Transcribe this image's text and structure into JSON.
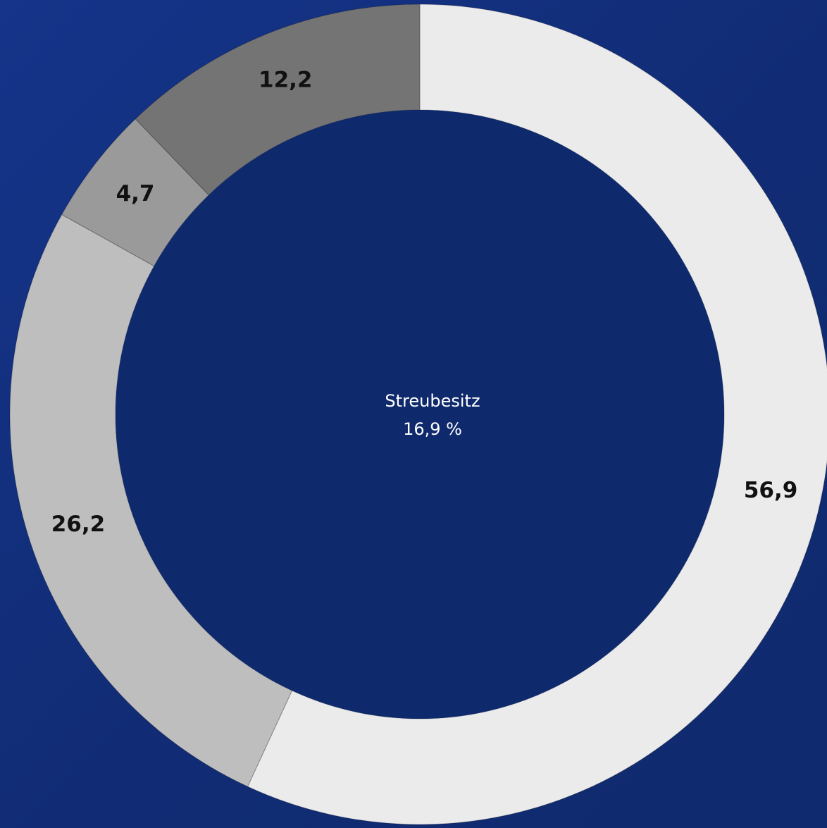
{
  "chart_data": {
    "type": "donut",
    "values": [
      56.9,
      26.2,
      4.7,
      12.2
    ],
    "value_labels": [
      "56,9",
      "26,2",
      "4,7",
      "12,2"
    ],
    "colors": [
      "#ebebeb",
      "#bebebe",
      "#9a9a9a",
      "#747474"
    ],
    "annotations": [
      "Streubesitz",
      "16,9 %"
    ]
  }
}
